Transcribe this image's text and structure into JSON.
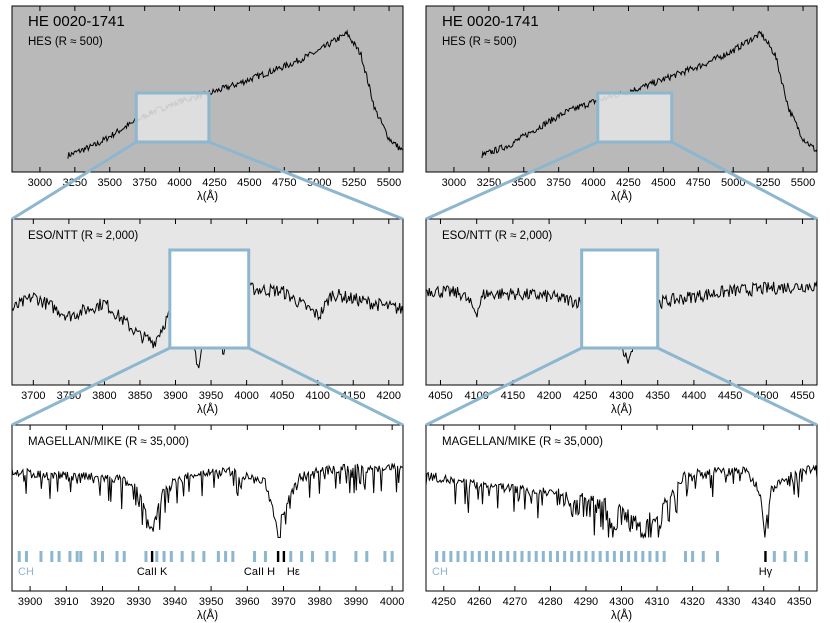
{
  "colors": {
    "hes_bg": "#b9b9b9",
    "eso_bg": "#e6e6e6",
    "mike_bg": "#ffffff",
    "zoom_box": "#8db6cf",
    "spectrum": "#000000",
    "ch_marks": "#8db6cf"
  },
  "chart_data": [
    {
      "type": "line",
      "panel": "left-top",
      "object": "HE 0020-1741",
      "instrument": "HES (R ≈ 500)",
      "xlabel": "λ(Å)",
      "xlim": [
        2800,
        5600
      ],
      "xticks": [
        "3000",
        "3250",
        "3500",
        "3750",
        "4000",
        "4250",
        "4500",
        "4750",
        "5000",
        "5250",
        "5500"
      ],
      "zoom_window": [
        3690,
        4210
      ],
      "series": [
        {
          "x": [
            3200,
            3400,
            3600,
            3800,
            4000,
            4200,
            4400,
            4600,
            4800,
            5000,
            5100,
            5200,
            5250,
            5300,
            5400,
            5500,
            5600
          ],
          "y": [
            0.05,
            0.13,
            0.26,
            0.38,
            0.46,
            0.52,
            0.59,
            0.67,
            0.75,
            0.85,
            0.92,
            0.98,
            0.9,
            0.82,
            0.4,
            0.18,
            0.08
          ]
        }
      ]
    },
    {
      "type": "line",
      "panel": "right-top",
      "object": "HE 0020-1741",
      "instrument": "HES (R ≈ 500)",
      "xlabel": "λ(Å)",
      "xlim": [
        2800,
        5600
      ],
      "xticks": [
        "3000",
        "3250",
        "3500",
        "3750",
        "4000",
        "4250",
        "4500",
        "4750",
        "5000",
        "5250",
        "5500"
      ],
      "zoom_window": [
        4030,
        4560
      ],
      "series": [
        {
          "x": [
            3200,
            3400,
            3600,
            3800,
            4000,
            4200,
            4400,
            4600,
            4800,
            5000,
            5100,
            5200,
            5250,
            5300,
            5400,
            5500,
            5600
          ],
          "y": [
            0.05,
            0.13,
            0.26,
            0.38,
            0.46,
            0.52,
            0.59,
            0.67,
            0.75,
            0.85,
            0.92,
            0.98,
            0.9,
            0.82,
            0.4,
            0.18,
            0.08
          ]
        }
      ]
    },
    {
      "type": "line",
      "panel": "left-middle",
      "instrument": "ESO/NTT (R ≈ 2,000)",
      "xlabel": "λ(Å)",
      "xlim": [
        3670,
        4220
      ],
      "xticks": [
        "3700",
        "3750",
        "3800",
        "3850",
        "3900",
        "3950",
        "4000",
        "4050",
        "4100",
        "4150",
        "4200"
      ],
      "zoom_window": [
        3892,
        4003
      ],
      "series": [
        {
          "x": [
            3670,
            3700,
            3750,
            3800,
            3850,
            3870,
            3900,
            3920,
            3933,
            3945,
            3960,
            3968,
            3980,
            4000,
            4050,
            4102,
            4120,
            4150,
            4200,
            4220
          ],
          "y": [
            0.5,
            0.6,
            0.45,
            0.55,
            0.3,
            0.25,
            0.55,
            0.35,
            0.05,
            0.55,
            0.55,
            0.12,
            0.6,
            0.66,
            0.64,
            0.45,
            0.62,
            0.58,
            0.52,
            0.5
          ]
        }
      ]
    },
    {
      "type": "line",
      "panel": "right-middle",
      "instrument": "ESO/NTT (R ≈ 2,000)",
      "xlabel": "λ(Å)",
      "xlim": [
        4030,
        4570
      ],
      "xticks": [
        "4050",
        "4100",
        "4150",
        "4200",
        "4250",
        "4300",
        "4350",
        "4400",
        "4450",
        "4500",
        "4550"
      ],
      "zoom_window": [
        4245,
        4350
      ],
      "series": [
        {
          "x": [
            4030,
            4080,
            4100,
            4110,
            4150,
            4200,
            4250,
            4280,
            4300,
            4310,
            4320,
            4340,
            4350,
            4400,
            4450,
            4500,
            4550,
            4570
          ],
          "y": [
            0.65,
            0.62,
            0.48,
            0.62,
            0.62,
            0.6,
            0.55,
            0.45,
            0.2,
            0.1,
            0.3,
            0.45,
            0.55,
            0.6,
            0.64,
            0.66,
            0.68,
            0.68
          ]
        }
      ]
    },
    {
      "type": "line",
      "panel": "left-bottom",
      "instrument": "MAGELLAN/MIKE (R ≈ 35,000)",
      "xlabel": "λ(Å)",
      "xlim": [
        3895,
        4003
      ],
      "xticks": [
        "3900",
        "3910",
        "3920",
        "3930",
        "3940",
        "3950",
        "3960",
        "3970",
        "3980",
        "3990",
        "4000"
      ],
      "series": [
        {
          "x": [
            3895,
            3905,
            3915,
            3925,
            3930,
            3933.7,
            3937,
            3945,
            3955,
            3965,
            3968.5,
            3970.1,
            3975,
            3985,
            3995,
            4003
          ],
          "y": [
            0.85,
            0.8,
            0.78,
            0.75,
            0.6,
            0.05,
            0.65,
            0.82,
            0.85,
            0.7,
            0.1,
            0.35,
            0.82,
            0.88,
            0.9,
            0.9
          ]
        }
      ],
      "line_labels": [
        {
          "label": "CH",
          "x": 3896
        },
        {
          "label": "CaII K",
          "x": 3933.7
        },
        {
          "label": "CaII H",
          "x": 3968.5
        },
        {
          "label": "Hε",
          "x": 3970.1
        }
      ],
      "ch_features": [
        3897,
        3899,
        3903,
        3906,
        3908,
        3911,
        3913,
        3914,
        3918,
        3920,
        3924,
        3926,
        3932,
        3935,
        3937,
        3939,
        3942,
        3945,
        3948,
        3952,
        3954,
        3956,
        3962,
        3965,
        3972,
        3975,
        3978,
        3982,
        3984,
        3990,
        3993,
        3998,
        4000
      ]
    },
    {
      "type": "line",
      "panel": "right-bottom",
      "instrument": "MAGELLAN/MIKE (R ≈ 35,000)",
      "xlabel": "λ(Å)",
      "xlim": [
        4245,
        4355
      ],
      "xticks": [
        "4250",
        "4260",
        "4270",
        "4280",
        "4290",
        "4300",
        "4310",
        "4320",
        "4330",
        "4340",
        "4350"
      ],
      "series": [
        {
          "x": [
            4245,
            4255,
            4265,
            4275,
            4285,
            4295,
            4300,
            4305,
            4310,
            4313,
            4318,
            4325,
            4335,
            4339,
            4340.5,
            4342,
            4350,
            4355
          ],
          "y": [
            0.8,
            0.7,
            0.65,
            0.6,
            0.55,
            0.45,
            0.35,
            0.25,
            0.25,
            0.5,
            0.8,
            0.85,
            0.85,
            0.6,
            0.15,
            0.6,
            0.88,
            0.88
          ]
        }
      ],
      "line_labels": [
        {
          "label": "CH",
          "x": 4246
        },
        {
          "label": "Hγ",
          "x": 4340.5
        }
      ],
      "ch_features": [
        4248,
        4250,
        4252,
        4254,
        4256,
        4258,
        4260,
        4262,
        4264,
        4266,
        4268,
        4270,
        4272,
        4274,
        4276,
        4278,
        4280,
        4282,
        4284,
        4286,
        4288,
        4290,
        4292,
        4294,
        4296,
        4298,
        4300,
        4302,
        4304,
        4306,
        4308,
        4310,
        4312,
        4318,
        4320,
        4323,
        4327,
        4343,
        4346,
        4349,
        4352
      ]
    }
  ]
}
